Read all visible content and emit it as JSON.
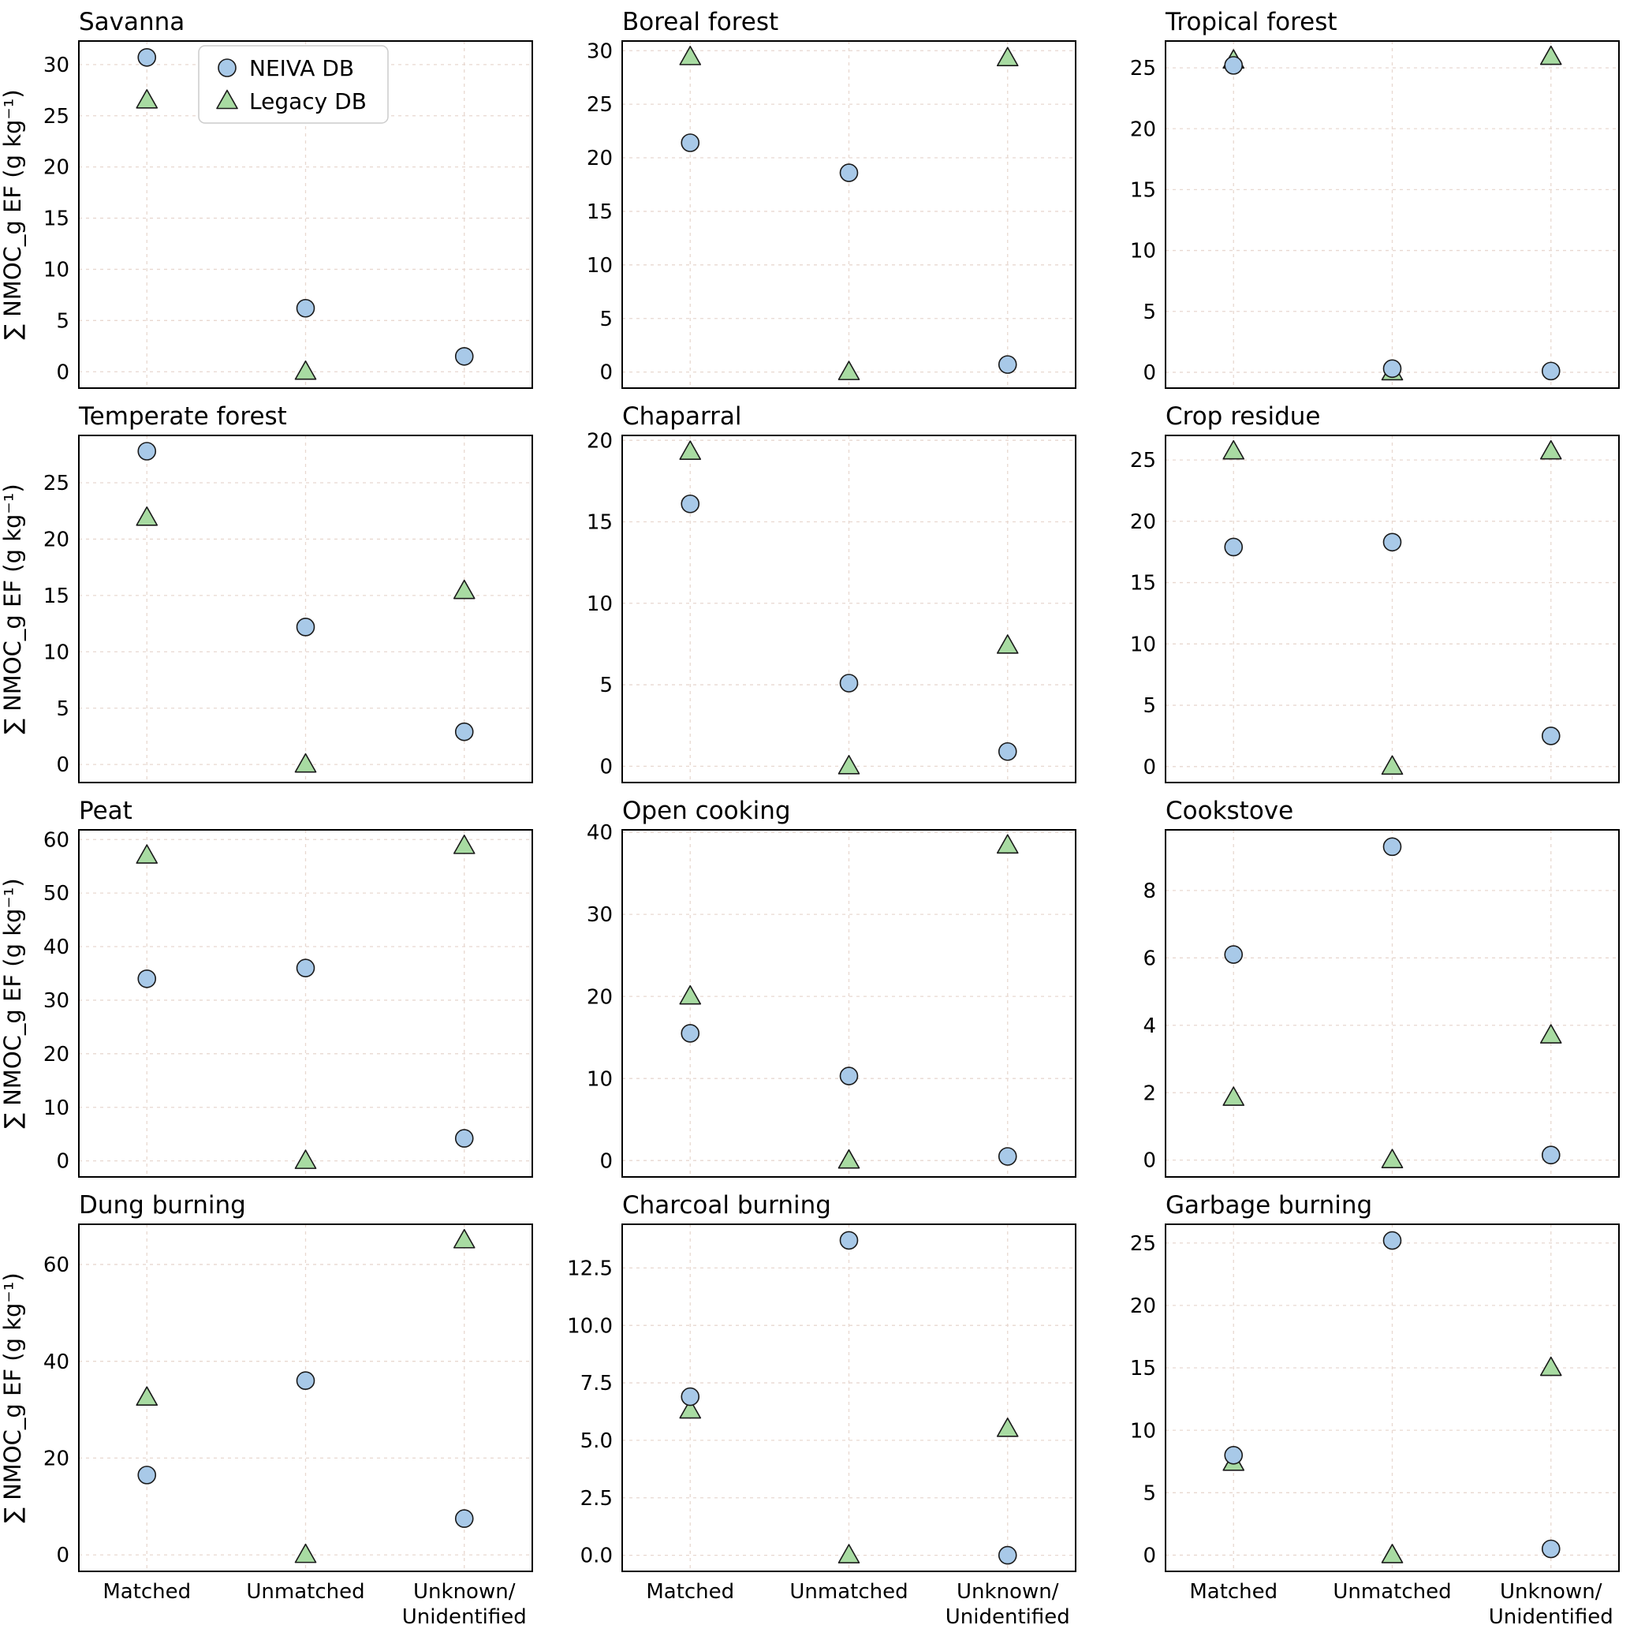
{
  "colors": {
    "neiva_fill": "#a8c9e8",
    "legacy_fill": "#a8dba2",
    "edge": "#1a1a1a",
    "grid": "#e8d8d0"
  },
  "chart_data": {
    "type": "scatter",
    "ylabel": "∑ NMOC_g EF (g kg⁻¹)",
    "categories": [
      "Matched",
      "Unmatched",
      "Unknown/Unidentified"
    ],
    "xtick_lines": [
      [
        "Matched"
      ],
      [
        "Unmatched"
      ],
      [
        "Unknown/",
        "Unidentified"
      ]
    ],
    "series_names": [
      "NEIVA DB",
      "Legacy DB"
    ],
    "legend_position": "upper area of first subplot",
    "grid": "dashed",
    "plots": [
      {
        "title": "Savanna",
        "ylim": [
          -1.6,
          32.3
        ],
        "yticks": [
          0,
          5,
          10,
          15,
          20,
          25,
          30
        ],
        "ytick_labels": [
          "0",
          "5",
          "10",
          "15",
          "20",
          "25",
          "30"
        ],
        "neiva": [
          30.7,
          6.2,
          1.5
        ],
        "legacy": [
          26.5,
          0.0,
          null
        ]
      },
      {
        "title": "Boreal forest",
        "ylim": [
          -1.5,
          30.9
        ],
        "yticks": [
          0,
          5,
          10,
          15,
          20,
          25,
          30
        ],
        "ytick_labels": [
          "0",
          "5",
          "10",
          "15",
          "20",
          "25",
          "30"
        ],
        "neiva": [
          21.4,
          18.6,
          0.7
        ],
        "legacy": [
          29.4,
          0.0,
          29.3
        ]
      },
      {
        "title": "Tropical forest",
        "ylim": [
          -1.3,
          27.2
        ],
        "yticks": [
          0,
          5,
          10,
          15,
          20,
          25
        ],
        "ytick_labels": [
          "0",
          "5",
          "10",
          "15",
          "20",
          "25"
        ],
        "neiva": [
          25.2,
          0.3,
          0.1
        ],
        "legacy": [
          25.6,
          0.0,
          25.9
        ]
      },
      {
        "title": "Temperate forest",
        "ylim": [
          -1.6,
          29.2
        ],
        "yticks": [
          0,
          5,
          10,
          15,
          20,
          25
        ],
        "ytick_labels": [
          "0",
          "5",
          "10",
          "15",
          "20",
          "25"
        ],
        "neiva": [
          27.8,
          12.2,
          2.9
        ],
        "legacy": [
          21.9,
          0.0,
          15.4
        ]
      },
      {
        "title": "Chaparral",
        "ylim": [
          -1.0,
          20.3
        ],
        "yticks": [
          0,
          5,
          10,
          15,
          20
        ],
        "ytick_labels": [
          "0",
          "5",
          "10",
          "15",
          "20"
        ],
        "neiva": [
          16.1,
          5.1,
          0.9
        ],
        "legacy": [
          19.3,
          0.0,
          7.4
        ]
      },
      {
        "title": "Crop residue",
        "ylim": [
          -1.3,
          27.0
        ],
        "yticks": [
          0,
          5,
          10,
          15,
          20,
          25
        ],
        "ytick_labels": [
          "0",
          "5",
          "10",
          "15",
          "20",
          "25"
        ],
        "neiva": [
          17.9,
          18.3,
          2.5
        ],
        "legacy": [
          25.7,
          0.0,
          25.7
        ]
      },
      {
        "title": "Peat",
        "ylim": [
          -3.0,
          61.8
        ],
        "yticks": [
          0,
          10,
          20,
          30,
          40,
          50,
          60
        ],
        "ytick_labels": [
          "0",
          "10",
          "20",
          "30",
          "40",
          "50",
          "60"
        ],
        "neiva": [
          34.0,
          36.0,
          4.2
        ],
        "legacy": [
          57.0,
          0.0,
          58.8
        ]
      },
      {
        "title": "Open cooking",
        "ylim": [
          -2.0,
          40.3
        ],
        "yticks": [
          0,
          10,
          20,
          30,
          40
        ],
        "ytick_labels": [
          "0",
          "10",
          "20",
          "30",
          "40"
        ],
        "neiva": [
          15.5,
          10.3,
          0.5
        ],
        "legacy": [
          20.0,
          0.0,
          38.4
        ]
      },
      {
        "title": "Cookstove",
        "ylim": [
          -0.5,
          9.8
        ],
        "yticks": [
          0,
          2,
          4,
          6,
          8
        ],
        "ytick_labels": [
          "0",
          "2",
          "4",
          "6",
          "8"
        ],
        "neiva": [
          6.1,
          9.3,
          0.15
        ],
        "legacy": [
          1.85,
          0.0,
          3.7
        ]
      },
      {
        "title": "Dung burning",
        "ylim": [
          -3.4,
          68.3
        ],
        "yticks": [
          0,
          20,
          40,
          60
        ],
        "ytick_labels": [
          "0",
          "20",
          "40",
          "60"
        ],
        "neiva": [
          16.5,
          36.0,
          7.5
        ],
        "legacy": [
          32.5,
          0.0,
          65.0
        ]
      },
      {
        "title": "Charcoal burning",
        "ylim": [
          -0.7,
          14.4
        ],
        "yticks": [
          0,
          2.5,
          5,
          7.5,
          10,
          12.5
        ],
        "ytick_labels": [
          "0.0",
          "2.5",
          "5.0",
          "7.5",
          "10.0",
          "12.5"
        ],
        "neiva": [
          6.9,
          13.7,
          0.0
        ],
        "legacy": [
          6.3,
          0.0,
          5.5
        ]
      },
      {
        "title": "Garbage burning",
        "ylim": [
          -1.3,
          26.5
        ],
        "yticks": [
          0,
          5,
          10,
          15,
          20,
          25
        ],
        "ytick_labels": [
          "0",
          "5",
          "10",
          "15",
          "20",
          "25"
        ],
        "neiva": [
          8.0,
          25.2,
          0.5
        ],
        "legacy": [
          7.4,
          0.0,
          15.0
        ]
      }
    ]
  }
}
